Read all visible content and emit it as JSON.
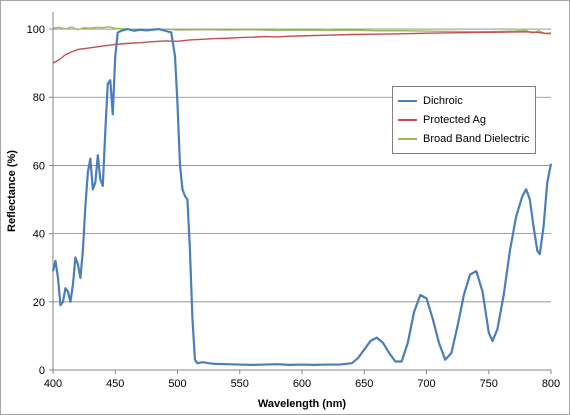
{
  "chart_data": {
    "type": "line",
    "xlabel": "Wavelength (nm)",
    "ylabel": "Reflectance (%)",
    "xlim": [
      400,
      800
    ],
    "ylim": [
      0,
      105
    ],
    "x_ticks": [
      400,
      450,
      500,
      550,
      600,
      650,
      700,
      750,
      800
    ],
    "y_ticks": [
      0,
      20,
      40,
      60,
      80,
      100
    ],
    "grid": "horizontal",
    "legend_position": "right",
    "series": [
      {
        "name": "Dichroic",
        "color": "#4a7ebb",
        "points": [
          [
            400,
            29
          ],
          [
            402,
            32
          ],
          [
            404,
            27
          ],
          [
            406,
            19
          ],
          [
            408,
            20
          ],
          [
            410,
            24
          ],
          [
            412,
            23
          ],
          [
            414,
            20
          ],
          [
            416,
            25
          ],
          [
            418,
            33
          ],
          [
            420,
            31
          ],
          [
            422,
            27
          ],
          [
            424,
            35
          ],
          [
            426,
            48
          ],
          [
            428,
            58
          ],
          [
            430,
            62
          ],
          [
            432,
            53
          ],
          [
            434,
            55
          ],
          [
            436,
            63
          ],
          [
            438,
            56
          ],
          [
            440,
            54
          ],
          [
            442,
            70
          ],
          [
            444,
            84
          ],
          [
            446,
            85
          ],
          [
            448,
            75
          ],
          [
            450,
            92
          ],
          [
            452,
            99
          ],
          [
            455,
            99.5
          ],
          [
            460,
            100
          ],
          [
            465,
            99.5
          ],
          [
            470,
            99.8
          ],
          [
            475,
            99.6
          ],
          [
            480,
            99.8
          ],
          [
            485,
            100
          ],
          [
            490,
            99.5
          ],
          [
            495,
            99
          ],
          [
            498,
            92
          ],
          [
            500,
            78
          ],
          [
            502,
            60
          ],
          [
            504,
            53
          ],
          [
            506,
            51
          ],
          [
            508,
            50
          ],
          [
            510,
            35
          ],
          [
            512,
            15
          ],
          [
            514,
            3
          ],
          [
            516,
            2
          ],
          [
            520,
            2.3
          ],
          [
            525,
            2
          ],
          [
            530,
            1.8
          ],
          [
            540,
            1.7
          ],
          [
            550,
            1.6
          ],
          [
            560,
            1.5
          ],
          [
            570,
            1.6
          ],
          [
            580,
            1.7
          ],
          [
            590,
            1.5
          ],
          [
            600,
            1.6
          ],
          [
            610,
            1.5
          ],
          [
            620,
            1.6
          ],
          [
            630,
            1.6
          ],
          [
            640,
            2
          ],
          [
            645,
            3.5
          ],
          [
            650,
            6
          ],
          [
            655,
            8.5
          ],
          [
            660,
            9.5
          ],
          [
            665,
            8
          ],
          [
            670,
            5
          ],
          [
            675,
            2.5
          ],
          [
            680,
            2.5
          ],
          [
            685,
            8
          ],
          [
            690,
            17
          ],
          [
            695,
            22
          ],
          [
            700,
            21
          ],
          [
            705,
            15
          ],
          [
            710,
            8
          ],
          [
            715,
            3
          ],
          [
            720,
            5
          ],
          [
            725,
            13
          ],
          [
            730,
            22
          ],
          [
            735,
            28
          ],
          [
            740,
            29
          ],
          [
            745,
            23
          ],
          [
            750,
            11
          ],
          [
            753,
            8.5
          ],
          [
            757,
            12
          ],
          [
            762,
            22
          ],
          [
            767,
            35
          ],
          [
            772,
            45
          ],
          [
            777,
            51
          ],
          [
            780,
            53
          ],
          [
            783,
            50
          ],
          [
            786,
            42
          ],
          [
            789,
            35
          ],
          [
            791,
            34
          ],
          [
            794,
            42
          ],
          [
            797,
            55
          ],
          [
            800,
            60.5
          ]
        ]
      },
      {
        "name": "Protected Ag",
        "color": "#c0504d",
        "points": [
          [
            400,
            90
          ],
          [
            405,
            91
          ],
          [
            410,
            92.5
          ],
          [
            415,
            93.3
          ],
          [
            420,
            94
          ],
          [
            430,
            94.5
          ],
          [
            440,
            95
          ],
          [
            450,
            95.5
          ],
          [
            460,
            95.8
          ],
          [
            470,
            96
          ],
          [
            480,
            96.3
          ],
          [
            490,
            96.5
          ],
          [
            500,
            96.4
          ],
          [
            510,
            96.8
          ],
          [
            520,
            97
          ],
          [
            530,
            97.2
          ],
          [
            540,
            97.3
          ],
          [
            550,
            97.5
          ],
          [
            560,
            97.6
          ],
          [
            570,
            97.8
          ],
          [
            580,
            97.7
          ],
          [
            590,
            97.9
          ],
          [
            600,
            98
          ],
          [
            620,
            98.2
          ],
          [
            640,
            98.4
          ],
          [
            660,
            98.5
          ],
          [
            680,
            98.6
          ],
          [
            700,
            98.8
          ],
          [
            720,
            98.9
          ],
          [
            740,
            99
          ],
          [
            760,
            99.1
          ],
          [
            780,
            99.2
          ],
          [
            790,
            99
          ],
          [
            795,
            98.7
          ],
          [
            800,
            98.8
          ]
        ]
      },
      {
        "name": "Broad Band Dielectric",
        "color": "#9bbb59",
        "points": [
          [
            400,
            100.3
          ],
          [
            405,
            100.5
          ],
          [
            410,
            100
          ],
          [
            415,
            100.6
          ],
          [
            420,
            99.8
          ],
          [
            425,
            100.4
          ],
          [
            430,
            100.2
          ],
          [
            435,
            100.5
          ],
          [
            440,
            100.4
          ],
          [
            445,
            100.7
          ],
          [
            450,
            100.2
          ],
          [
            460,
            100
          ],
          [
            470,
            99.9
          ],
          [
            480,
            99.8
          ],
          [
            490,
            100
          ],
          [
            500,
            99.7
          ],
          [
            520,
            99.8
          ],
          [
            540,
            99.7
          ],
          [
            560,
            99.8
          ],
          [
            580,
            99.6
          ],
          [
            600,
            99.7
          ],
          [
            620,
            99.6
          ],
          [
            640,
            99.7
          ],
          [
            660,
            99.5
          ],
          [
            680,
            99.5
          ],
          [
            700,
            99.4
          ],
          [
            720,
            99.3
          ],
          [
            740,
            99.2
          ],
          [
            760,
            99.3
          ],
          [
            770,
            99.4
          ],
          [
            780,
            99.6
          ],
          [
            785,
            98.8
          ],
          [
            790,
            99.5
          ],
          [
            795,
            98.7
          ],
          [
            800,
            98.6
          ]
        ]
      }
    ]
  }
}
